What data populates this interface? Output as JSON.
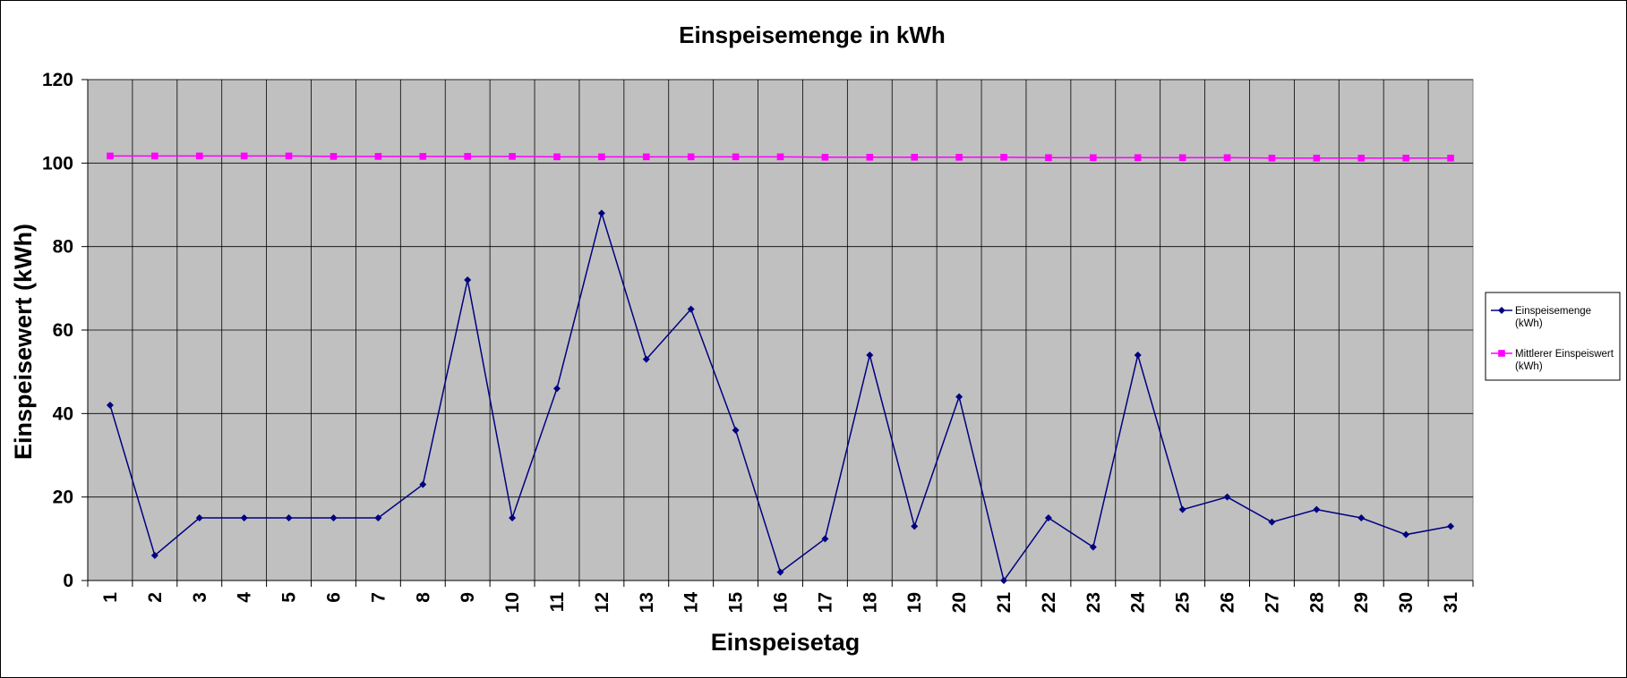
{
  "chart_data": {
    "type": "line",
    "title": "Einspeisemenge in kWh",
    "xlabel": "Einspeisetag",
    "ylabel": "Einspeisewert  (kWh)",
    "categories": [
      "1",
      "2",
      "3",
      "4",
      "5",
      "6",
      "7",
      "8",
      "9",
      "10",
      "11",
      "12",
      "13",
      "14",
      "15",
      "16",
      "17",
      "18",
      "19",
      "20",
      "21",
      "22",
      "23",
      "24",
      "25",
      "26",
      "27",
      "28",
      "29",
      "30",
      "31"
    ],
    "ylim": [
      0,
      120
    ],
    "yticks": [
      "0",
      "20",
      "40",
      "60",
      "80",
      "100",
      "120"
    ],
    "grid": true,
    "plot_background": "#c0c0c0",
    "legend_position": "right",
    "series": [
      {
        "name": "Einspeisemenge (kWh)",
        "legend_lines": [
          "Einspeisemenge",
          "(kWh)"
        ],
        "color": "#000080",
        "marker": "diamond",
        "values": [
          42,
          6,
          15,
          15,
          15,
          15,
          15,
          23,
          72,
          15,
          46,
          88,
          53,
          65,
          36,
          2,
          10,
          54,
          13,
          44,
          0,
          15,
          8,
          54,
          17,
          20,
          14,
          17,
          15,
          11,
          13
        ]
      },
      {
        "name": "Mittlerer Einspeiswert (kWh)",
        "legend_lines": [
          "Mittlerer Einspeiswert",
          "(kWh)"
        ],
        "color": "#ff00ff",
        "marker": "square",
        "values": [
          101.7,
          101.7,
          101.7,
          101.7,
          101.7,
          101.6,
          101.6,
          101.6,
          101.6,
          101.6,
          101.5,
          101.5,
          101.5,
          101.5,
          101.5,
          101.5,
          101.4,
          101.4,
          101.4,
          101.4,
          101.4,
          101.3,
          101.3,
          101.3,
          101.3,
          101.3,
          101.2,
          101.2,
          101.2,
          101.2,
          101.2
        ]
      }
    ]
  }
}
